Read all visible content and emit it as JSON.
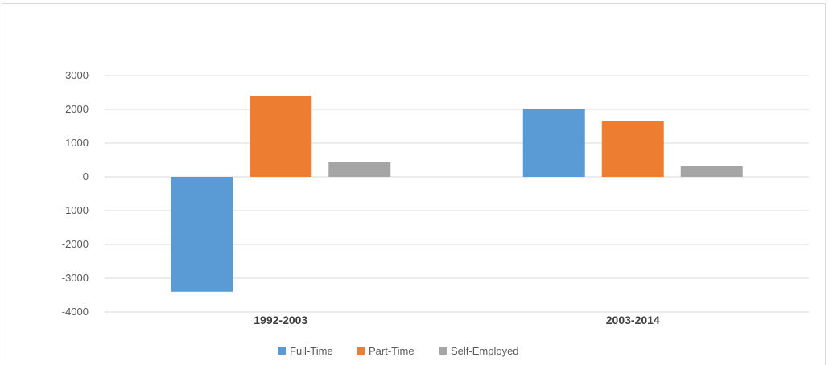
{
  "chart_data": {
    "type": "bar",
    "categories": [
      "1992-2003",
      "2003-2014"
    ],
    "series": [
      {
        "name": "Full-Time",
        "values": [
          -3400,
          2000
        ],
        "color": "#5b9bd5"
      },
      {
        "name": "Part-Time",
        "values": [
          2400,
          1650
        ],
        "color": "#ed7d31"
      },
      {
        "name": "Self-Employed",
        "values": [
          430,
          320
        ],
        "color": "#a5a5a5"
      }
    ],
    "ylim": [
      -4000,
      3000
    ],
    "yticks": [
      3000,
      2000,
      1000,
      0,
      -1000,
      -2000,
      -3000,
      -4000
    ],
    "grid": true,
    "legend": "bottom-center",
    "gridline_color": "#d9d9d9"
  }
}
